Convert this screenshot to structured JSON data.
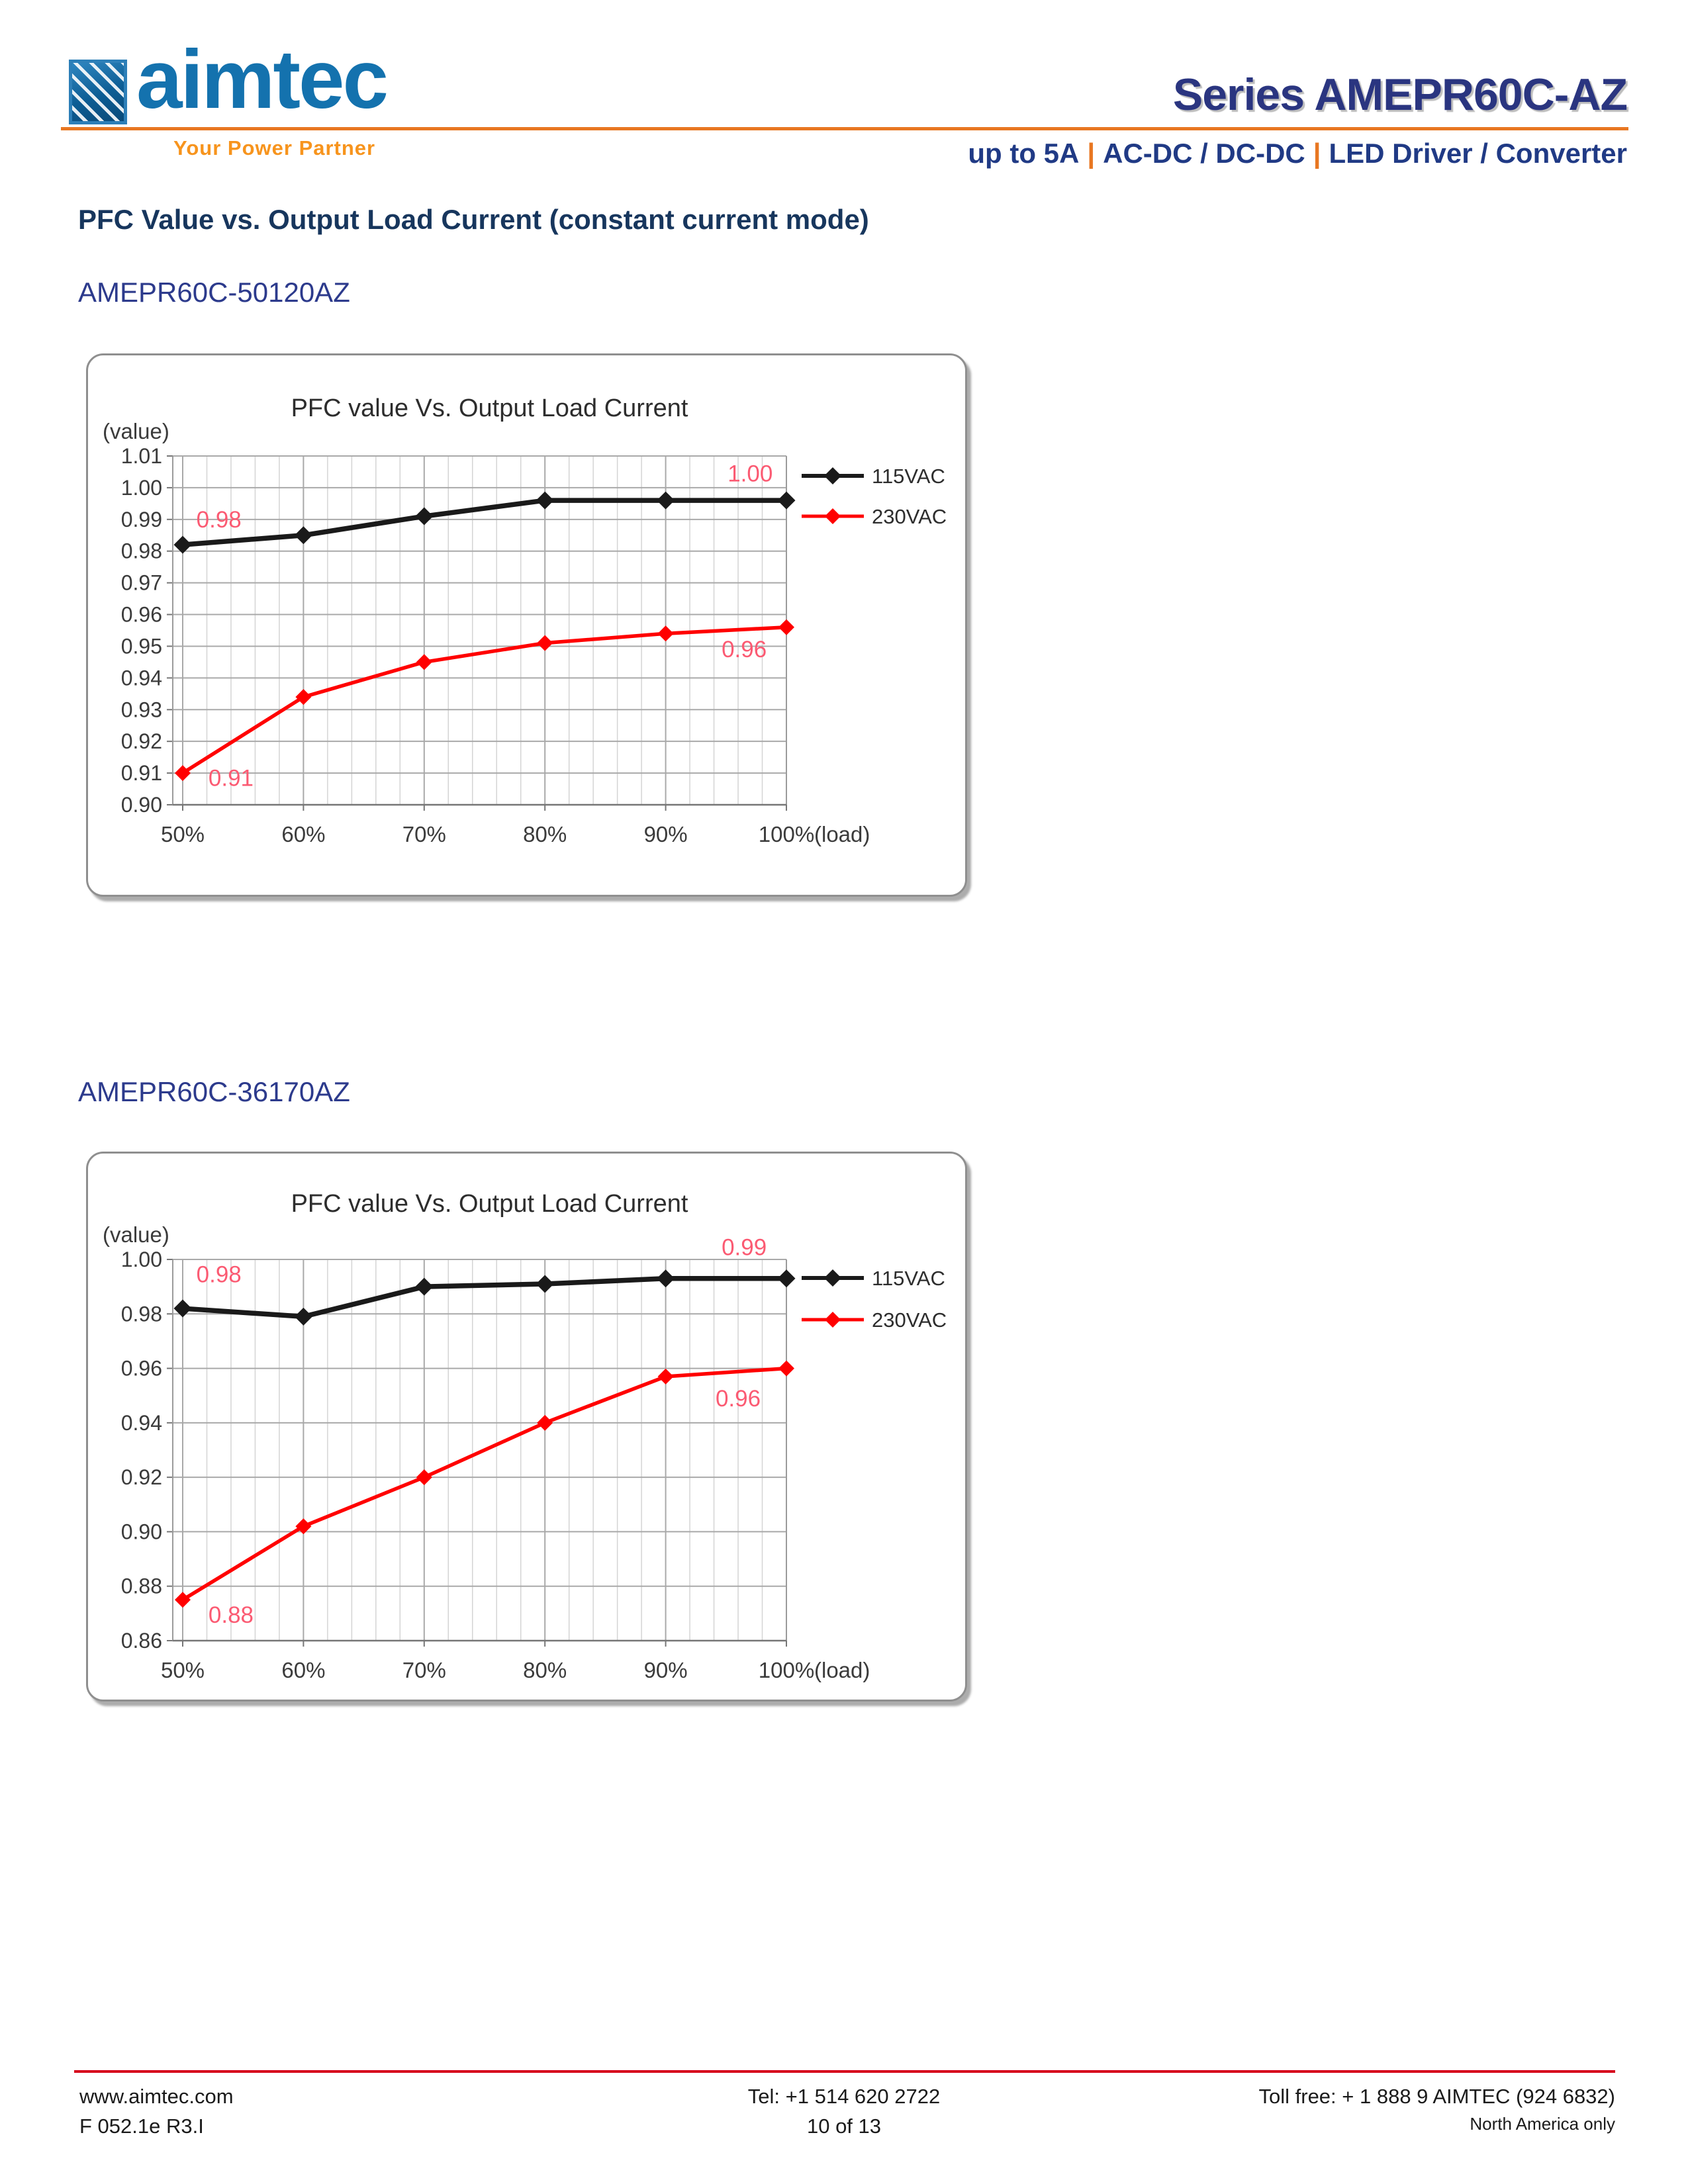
{
  "header": {
    "logo_text": "aimtec",
    "tagline": "Your Power Partner",
    "series_title": "Series AMEPR60C-AZ",
    "subtitle_parts": [
      "up to 5A",
      "AC-DC / DC-DC",
      "LED Driver / Converter"
    ],
    "subtitle_separator": "|"
  },
  "section_heading": "PFC Value vs. Output Load Current (constant current mode)",
  "colors": {
    "header_orange": "#E87722",
    "tagline_orange": "#F7941D",
    "heading_navy": "#17365D",
    "series_title_navy": "#2A3580",
    "model_blue": "#2C3A8C",
    "footer_red": "#D6001C",
    "point_label_pink": "#FB5A72",
    "grid_minor": "#d4d4d4",
    "grid_major": "#a9a9a9",
    "axis_gray": "#767676",
    "chart_text": "#3b3b3b"
  },
  "chart_data": [
    {
      "type": "line",
      "model": "AMEPR60C-50120AZ",
      "title": "PFC value Vs. Output Load Current",
      "ylabel": "(value)",
      "x_suffix": "(load)",
      "categories": [
        "50%",
        "60%",
        "70%",
        "80%",
        "90%",
        "100%"
      ],
      "y_ticks": [
        "1.01",
        "1.00",
        "0.99",
        "0.98",
        "0.97",
        "0.96",
        "0.95",
        "0.94",
        "0.93",
        "0.92",
        "0.91",
        "0.90"
      ],
      "ylim": [
        0.9,
        1.01
      ],
      "grid": true,
      "legend_position": "right",
      "series": [
        {
          "name": "115VAC",
          "color": "#1A1A1A",
          "values": [
            0.982,
            0.985,
            0.991,
            0.996,
            0.996,
            0.996
          ]
        },
        {
          "name": "230VAC",
          "color": "#FF0000",
          "values": [
            0.91,
            0.934,
            0.945,
            0.951,
            0.954,
            0.956
          ]
        }
      ],
      "point_labels": [
        {
          "text": "0.98",
          "load": 53,
          "value": 0.99
        },
        {
          "text": "1.00",
          "load": 97,
          "value": 1.0045
        },
        {
          "text": "0.91",
          "load": 54,
          "value": 0.9085
        },
        {
          "text": "0.96",
          "load": 96.5,
          "value": 0.949
        }
      ]
    },
    {
      "type": "line",
      "model": "AMEPR60C-36170AZ",
      "title": "PFC value Vs. Output Load Current",
      "ylabel": "(value)",
      "x_suffix": "(load)",
      "categories": [
        "50%",
        "60%",
        "70%",
        "80%",
        "90%",
        "100%"
      ],
      "y_ticks": [
        "1.00",
        "0.98",
        "0.96",
        "0.94",
        "0.92",
        "0.90",
        "0.88",
        "0.86"
      ],
      "ylim": [
        0.86,
        1.0
      ],
      "grid": true,
      "legend_position": "right",
      "series": [
        {
          "name": "115VAC",
          "color": "#1A1A1A",
          "values": [
            0.982,
            0.979,
            0.99,
            0.991,
            0.993,
            0.993
          ]
        },
        {
          "name": "230VAC",
          "color": "#FF0000",
          "values": [
            0.875,
            0.902,
            0.92,
            0.94,
            0.957,
            0.96
          ]
        }
      ],
      "point_labels": [
        {
          "text": "0.98",
          "load": 53,
          "value": 0.9945
        },
        {
          "text": "0.99",
          "load": 96.5,
          "value": 1.0045
        },
        {
          "text": "0.88",
          "load": 54,
          "value": 0.8695
        },
        {
          "text": "0.96",
          "load": 96,
          "value": 0.949
        }
      ]
    }
  ],
  "footer": {
    "website": "www.aimtec.com",
    "doc_ref": "F 052.1e R3.I",
    "tel": "Tel: +1 514 620 2722",
    "page_num": "10 of 13",
    "toll_free": "Toll free: + 1 888 9 AIMTEC (924 6832)",
    "region_note": "North America only"
  }
}
